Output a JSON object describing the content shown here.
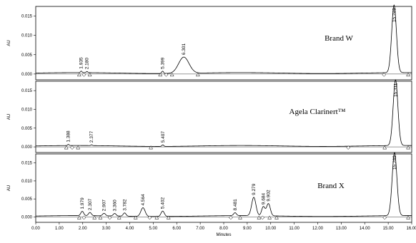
{
  "chart_data": [
    {
      "type": "line",
      "title": "Brand W",
      "ylabel": "AU",
      "xlabel": "",
      "xlim": [
        0,
        16
      ],
      "ylim": [
        -0.0015,
        0.0175
      ],
      "yticks": [
        "0.000",
        "0.005",
        "0.010",
        "0.015"
      ],
      "grid": false,
      "peaks": [
        {
          "rt": 1.935,
          "label": "1.935",
          "height": 0.0004,
          "width": 0.03
        },
        {
          "rt": 2.18,
          "label": "2.180",
          "height": 0.0003,
          "width": 0.03
        },
        {
          "rt": 5.399,
          "label": "5.399",
          "height": 0.0006,
          "width": 0.04
        },
        {
          "rt": 6.301,
          "label": "6.301",
          "height": 0.0042,
          "width": 0.22
        },
        {
          "rt": 15.249,
          "label": "15.249",
          "height": 0.0175,
          "width": 0.1
        }
      ]
    },
    {
      "type": "line",
      "title": "Agela Clarinert™",
      "ylabel": "AU",
      "xlabel": "",
      "xlim": [
        0,
        16
      ],
      "ylim": [
        -0.0015,
        0.0175
      ],
      "yticks": [
        "0.000",
        "0.005",
        "0.010",
        "0.015"
      ],
      "grid": false,
      "peaks": [
        {
          "rt": 1.388,
          "label": "1.388",
          "height": 0.0003,
          "width": 0.03
        },
        {
          "rt": 2.377,
          "label": "2.377",
          "height": 0.0002,
          "width": 0.03
        },
        {
          "rt": 5.407,
          "label": "5.407",
          "height": 0.0004,
          "width": 0.04
        },
        {
          "rt": 15.311,
          "label": "15.311",
          "height": 0.0175,
          "width": 0.1
        }
      ]
    },
    {
      "type": "line",
      "title": "Brand X",
      "ylabel": "AU",
      "xlabel": "Minutes",
      "xlim": [
        0,
        16
      ],
      "ylim": [
        -0.0015,
        0.0175
      ],
      "yticks": [
        "0.000",
        "0.005",
        "0.010",
        "0.015"
      ],
      "xticks": [
        "0.00",
        "1.00",
        "2.00",
        "3.00",
        "4.00",
        "5.00",
        "6.00",
        "7.00",
        "8.00",
        "9.00",
        "10.00",
        "11.00",
        "12.00",
        "13.00",
        "14.00",
        "15.00",
        "16.00"
      ],
      "grid": false,
      "peaks": [
        {
          "rt": 1.979,
          "label": "1.979",
          "height": 0.0012,
          "width": 0.06
        },
        {
          "rt": 2.307,
          "label": "2.307",
          "height": 0.0009,
          "width": 0.06
        },
        {
          "rt": 2.907,
          "label": "2.907",
          "height": 0.0007,
          "width": 0.06
        },
        {
          "rt": 3.36,
          "label": "3.360",
          "height": 0.0007,
          "width": 0.06
        },
        {
          "rt": 3.782,
          "label": "3.782",
          "height": 0.0009,
          "width": 0.06
        },
        {
          "rt": 4.564,
          "label": "4.564",
          "height": 0.0024,
          "width": 0.09
        },
        {
          "rt": 5.402,
          "label": "5.402",
          "height": 0.0015,
          "width": 0.07
        },
        {
          "rt": 8.481,
          "label": "8.481",
          "height": 0.0008,
          "width": 0.06
        },
        {
          "rt": 9.279,
          "label": "9.279",
          "height": 0.0051,
          "width": 0.09
        },
        {
          "rt": 9.684,
          "label": "9.684",
          "height": 0.0025,
          "width": 0.07
        },
        {
          "rt": 9.902,
          "label": "9.902",
          "height": 0.0034,
          "width": 0.08
        },
        {
          "rt": 15.269,
          "label": "15.269",
          "height": 0.0175,
          "width": 0.1
        }
      ]
    }
  ]
}
